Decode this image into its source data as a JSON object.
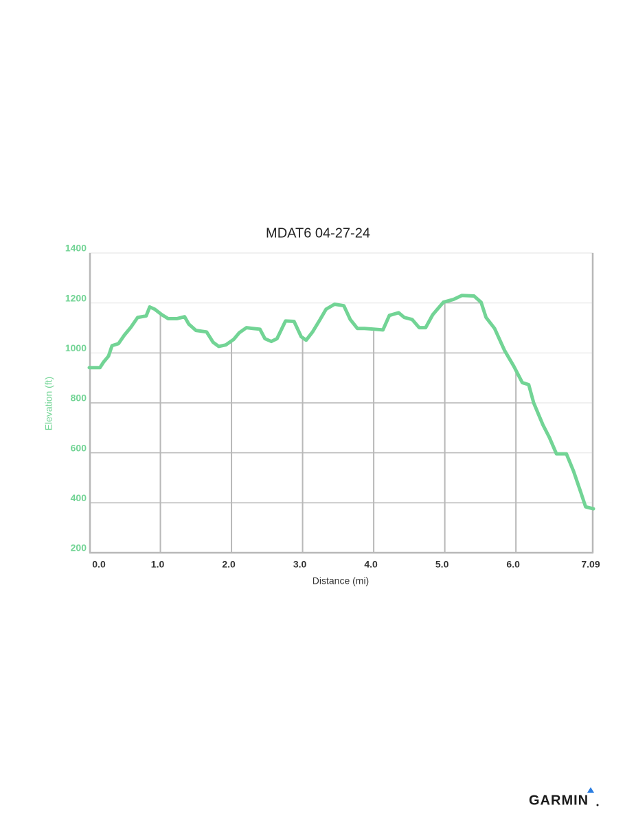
{
  "chart_data": {
    "type": "line",
    "title": "MDAT6 04-27-24",
    "x_label": "Distance (mi)",
    "y_label": "Elevation (ft)",
    "x": [
      0,
      0.15,
      0.2,
      0.27,
      0.32,
      0.41,
      0.49,
      0.58,
      0.68,
      0.8,
      0.85,
      0.92,
      1.02,
      1.11,
      1.23,
      1.34,
      1.4,
      1.5,
      1.65,
      1.74,
      1.82,
      1.92,
      2.03,
      2.11,
      2.21,
      2.3,
      2.4,
      2.47,
      2.56,
      2.64,
      2.76,
      2.88,
      2.98,
      3.05,
      3.14,
      3.24,
      3.33,
      3.45,
      3.58,
      3.67,
      3.77,
      3.87,
      4.01,
      4.13,
      4.22,
      4.35,
      4.43,
      4.54,
      4.64,
      4.73,
      4.83,
      4.98,
      5.12,
      5.24,
      5.41,
      5.51,
      5.58,
      5.7,
      5.84,
      5.97,
      6.09,
      6.18,
      6.25,
      6.38,
      6.47,
      6.57,
      6.71,
      6.81,
      6.91,
      6.98,
      7.09
    ],
    "series": [
      {
        "name": "Elevation",
        "color": "#72d495",
        "values": [
          941,
          941,
          963,
          987,
          1029,
          1037,
          1070,
          1101,
          1142,
          1148,
          1184,
          1175,
          1153,
          1137,
          1137,
          1145,
          1115,
          1090,
          1084,
          1043,
          1026,
          1032,
          1054,
          1081,
          1101,
          1098,
          1095,
          1057,
          1046,
          1057,
          1128,
          1126,
          1065,
          1051,
          1084,
          1131,
          1175,
          1195,
          1189,
          1134,
          1098,
          1098,
          1095,
          1092,
          1150,
          1161,
          1142,
          1134,
          1101,
          1101,
          1153,
          1203,
          1214,
          1230,
          1228,
          1203,
          1142,
          1098,
          1010,
          947,
          881,
          873,
          800,
          712,
          662,
          596,
          596,
          527,
          444,
          384,
          376
        ]
      }
    ],
    "xlim": [
      0,
      7.09
    ],
    "ylim": [
      200,
      1400
    ],
    "xticks": [
      {
        "value": 0,
        "label": "0.0"
      },
      {
        "value": 1,
        "label": "1.0"
      },
      {
        "value": 2,
        "label": "2.0"
      },
      {
        "value": 3,
        "label": "3.0"
      },
      {
        "value": 4,
        "label": "4.0"
      },
      {
        "value": 5,
        "label": "5.0"
      },
      {
        "value": 6,
        "label": "6.0"
      },
      7.09
    ],
    "yticks": [
      200,
      400,
      600,
      800,
      1000,
      1200,
      1400
    ],
    "grid": true,
    "logo": "GARMIN"
  }
}
